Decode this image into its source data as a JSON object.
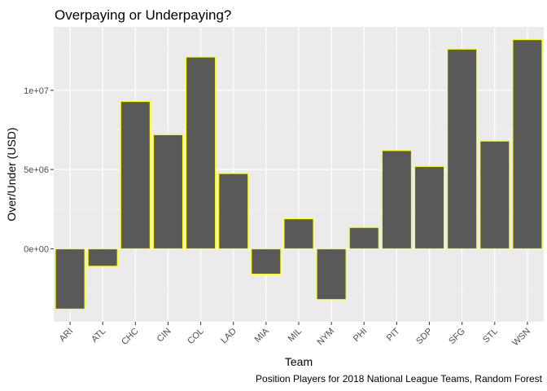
{
  "chart_data": {
    "type": "bar",
    "title": "Overpaying or Underpaying?",
    "xlabel": "Team",
    "ylabel": "Over/Under (USD)",
    "caption": "Position Players for 2018 National League Teams, Random Forest",
    "categories": [
      "ARI",
      "ATL",
      "CHC",
      "CIN",
      "COL",
      "LAD",
      "MIA",
      "MIL",
      "NYM",
      "PHI",
      "PIT",
      "SDP",
      "SFG",
      "STL",
      "WSN"
    ],
    "values": [
      -3800000,
      -1100000,
      9300000,
      7200000,
      12100000,
      4750000,
      -1600000,
      1900000,
      -3200000,
      1350000,
      6200000,
      5200000,
      12600000,
      6800000,
      13200000
    ],
    "yticks": [
      0,
      5000000,
      10000000
    ],
    "ytick_labels": [
      "0e+00",
      "5e+06",
      "1e+07"
    ],
    "ylim": [
      -4600000,
      14000000
    ],
    "grid": true,
    "legend": "none",
    "colors": {
      "panel_bg": "#ebebeb",
      "grid_major": "#ffffff",
      "bar_fill": "#595959",
      "bar_outline": "#ffff00"
    }
  }
}
